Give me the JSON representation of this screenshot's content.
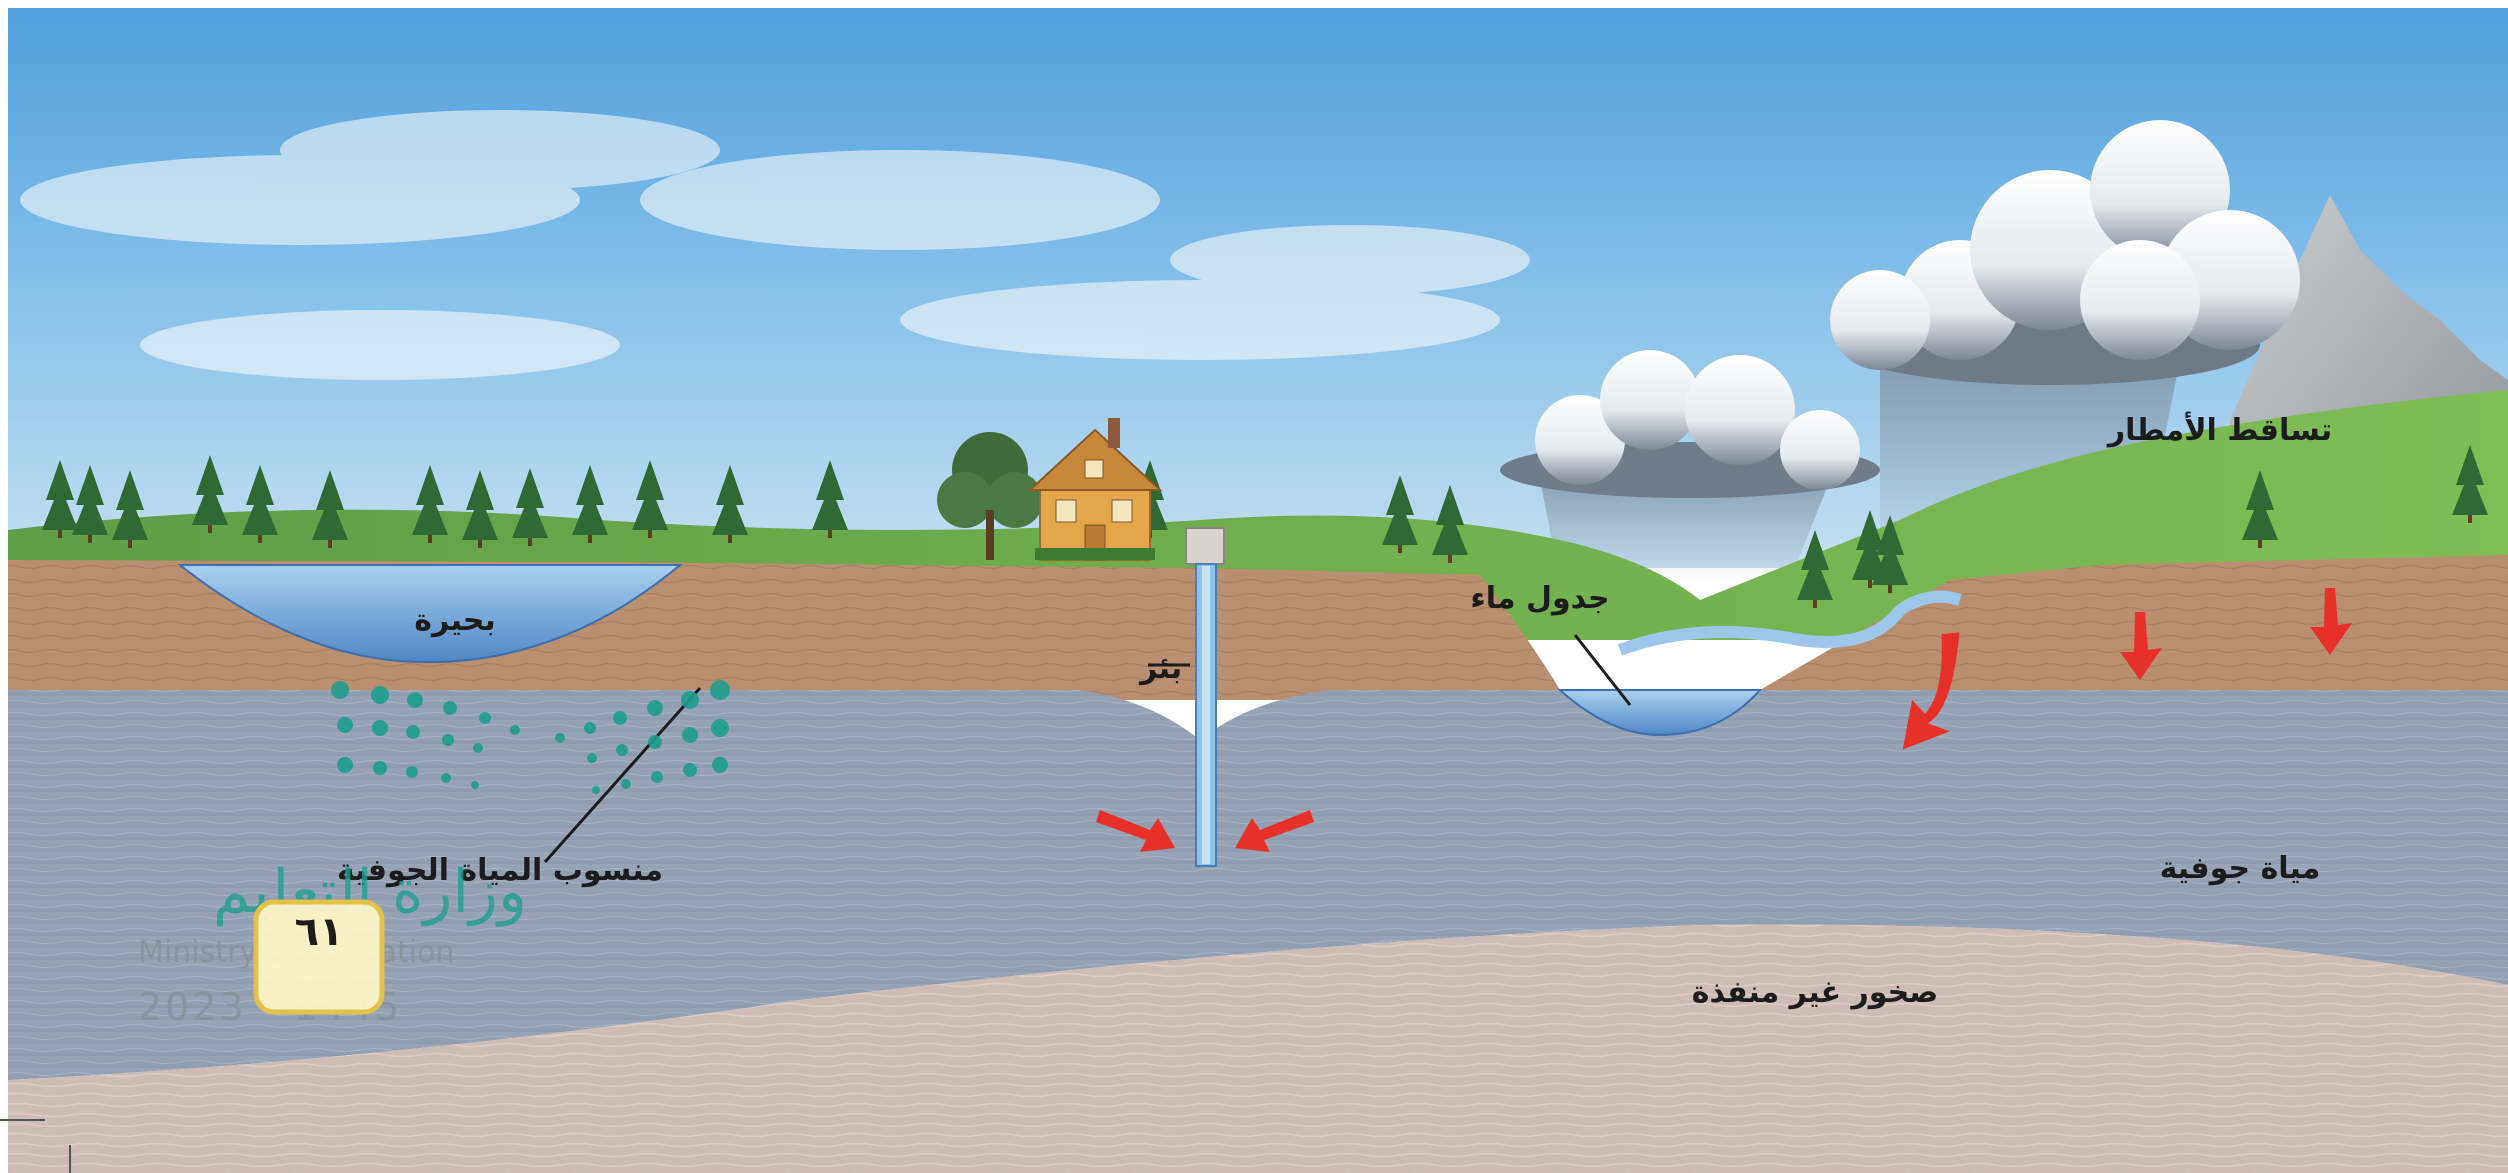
{
  "labels": {
    "lake": "بحيرة",
    "well": "بئر",
    "stream": "جدول ماء",
    "precipitation": "تساقط الأمطار",
    "water_table": "منسوب المياة الجوفية",
    "groundwater": "مياة جوفية",
    "impermeable_rock": "صخور غير منفذة"
  },
  "page_number": "٦١",
  "watermark": {
    "arabic": "وزارة التعليم",
    "english": "Ministry of Education",
    "year": "2023 - 1445"
  },
  "colors": {
    "sky_top": "#5fa9e0",
    "soil": "#b99072",
    "groundwater": "#9aa5b5",
    "bedrock": "#cbbab4",
    "grass": "#6aa84f",
    "water": "#6aa3d8",
    "arrow": "#e8302a",
    "watermark": "#1f9d8f",
    "page_badge": "#fff6c7"
  }
}
